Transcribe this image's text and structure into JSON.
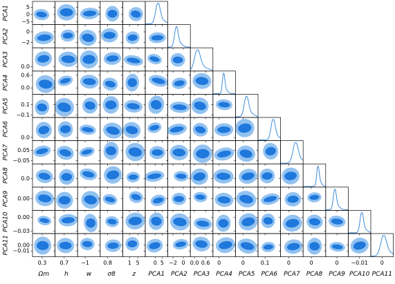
{
  "chart_data": {
    "type": "corner",
    "colors": {
      "outer": "#93c2f0",
      "inner": "#1f78dc",
      "line": "#2a7fd4"
    },
    "variables": [
      {
        "label": "Ωm",
        "lim": [
          0.15,
          0.5
        ],
        "xticks": [
          0.3
        ],
        "yticks": []
      },
      {
        "label": "h",
        "lim": [
          0.55,
          0.92
        ],
        "xticks": [
          0.7
        ],
        "yticks": []
      },
      {
        "label": "w",
        "lim": [
          -1.5,
          0
        ],
        "xticks": [
          {
            "value": -1,
            "label": "−1"
          }
        ],
        "yticks": []
      },
      {
        "label": "σ8",
        "lim": [
          0.7,
          1.0
        ],
        "xticks": [
          0.8
        ],
        "yticks": []
      },
      {
        "label": "z",
        "lim": [
          -2.3,
          8.6
        ],
        "xticks": [
          1,
          5
        ],
        "yticks": []
      },
      {
        "label": "PCA1",
        "lim": [
          -7,
          9
        ],
        "xticks": [
          0,
          5
        ],
        "yticks": [
          5,
          0,
          {
            "value": -5,
            "label": "−5"
          }
        ]
      },
      {
        "label": "PCA2",
        "lim": [
          -3,
          1.35
        ],
        "xticks": [
          {
            "value": -2,
            "label": "−2"
          },
          0
        ],
        "yticks": [
          0,
          {
            "value": -2,
            "label": "−2"
          }
        ]
      },
      {
        "label": "PCA3",
        "lim": [
          -0.22,
          1.0
        ],
        "xticks": [
          {
            "value": 0,
            "label": "0.0"
          },
          0.6
        ],
        "yticks": [
          {
            "value": 0,
            "label": "0.0"
          }
        ]
      },
      {
        "label": "PCA4",
        "lim": [
          -0.3,
          0.8
        ],
        "xticks": [
          0
        ],
        "yticks": [
          0.6,
          {
            "value": 0,
            "label": "0.0"
          }
        ]
      },
      {
        "label": "PCA5",
        "lim": [
          -0.15,
          0.3
        ],
        "xticks": [
          0
        ],
        "yticks": [
          0.1,
          {
            "value": -0.1,
            "label": "−0.1"
          }
        ]
      },
      {
        "label": "PCA6",
        "lim": [
          -0.08,
          0.5
        ],
        "xticks": [
          0.1
        ],
        "yticks": [
          {
            "value": 0,
            "label": "0.0"
          }
        ]
      },
      {
        "label": "PCA7",
        "lim": [
          -0.08,
          0.14
        ],
        "xticks": [
          0
        ],
        "yticks": [
          0.05,
          {
            "value": -0.05,
            "label": "−0.05"
          }
        ]
      },
      {
        "label": "PCA8",
        "lim": [
          -0.04,
          0.07
        ],
        "xticks": [
          0
        ],
        "yticks": [
          {
            "value": 0,
            "label": "0.0"
          }
        ]
      },
      {
        "label": "PCA9",
        "lim": [
          -0.03,
          0.03
        ],
        "xticks": [
          0
        ],
        "yticks": [
          {
            "value": 0,
            "label": "0.00"
          }
        ]
      },
      {
        "label": "PCA10",
        "lim": [
          -0.035,
          0.015
        ],
        "xticks": [
          {
            "value": -0.01,
            "label": "−0.01"
          }
        ],
        "yticks": [
          {
            "value": 0,
            "label": "0.00"
          },
          {
            "value": -0.03,
            "label": "−0.03"
          }
        ]
      },
      {
        "label": "PCA11",
        "lim": [
          -0.02,
          0.02
        ],
        "xticks": [
          0
        ],
        "yticks": [
          {
            "value": 0,
            "label": "0.00"
          },
          {
            "value": -0.01,
            "label": "−0.01"
          }
        ]
      }
    ],
    "rows_start": 5
  }
}
